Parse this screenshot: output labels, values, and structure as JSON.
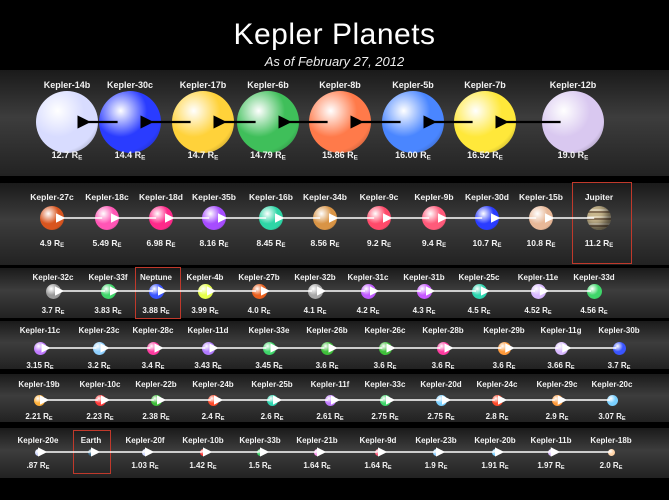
{
  "title": "Kepler Planets",
  "subtitle": "As of February 27, 2012",
  "unit": "E",
  "rows": [
    {
      "planets": [
        {
          "name": "Kepler-14b",
          "radius": "12.7",
          "color": "#d8dcff"
        },
        {
          "name": "Kepler-30c",
          "radius": "14.4",
          "color": "#2a3cff"
        },
        {
          "name": "Kepler-17b",
          "radius": "14.7",
          "color": "#ffd23a"
        },
        {
          "name": "Kepler-6b",
          "radius": "14.79",
          "color": "#3fbf5a"
        },
        {
          "name": "Kepler-8b",
          "radius": "15.86",
          "color": "#ff7a4a"
        },
        {
          "name": "Kepler-5b",
          "radius": "16.00",
          "color": "#4a86ff"
        },
        {
          "name": "Kepler-7b",
          "radius": "16.52",
          "color": "#ffe83a"
        },
        {
          "name": "Kepler-12b",
          "radius": "19.0",
          "color": "#d9c8f0"
        }
      ]
    },
    {
      "planets": [
        {
          "name": "Kepler-27c",
          "radius": "4.9",
          "color": "#d8551f"
        },
        {
          "name": "Kepler-18c",
          "radius": "5.49",
          "color": "#ff55b5"
        },
        {
          "name": "Kepler-18d",
          "radius": "6.98",
          "color": "#ff2a8a"
        },
        {
          "name": "Kepler-35b",
          "radius": "8.16",
          "color": "#a64cff"
        },
        {
          "name": "Kepler-16b",
          "radius": "8.45",
          "color": "#2ed6a6"
        },
        {
          "name": "Kepler-34b",
          "radius": "8.56",
          "color": "#d99445"
        },
        {
          "name": "Kepler-9c",
          "radius": "9.2",
          "color": "#ff4a6a"
        },
        {
          "name": "Kepler-9b",
          "radius": "9.4",
          "color": "#ff5a7a"
        },
        {
          "name": "Kepler-30d",
          "radius": "10.7",
          "color": "#2a3cff"
        },
        {
          "name": "Kepler-15b",
          "radius": "10.8",
          "color": "#e8b898"
        },
        {
          "name": "Jupiter",
          "radius": "11.2",
          "color": "#c9b88f",
          "highlight": true
        }
      ]
    },
    {
      "planets": [
        {
          "name": "Kepler-32c",
          "radius": "3.7",
          "color": "#9a9a9a"
        },
        {
          "name": "Kepler-33f",
          "radius": "3.83",
          "color": "#3fd66a"
        },
        {
          "name": "Neptune",
          "radius": "3.88",
          "color": "#3a55ff",
          "highlight": true
        },
        {
          "name": "Kepler-4b",
          "radius": "3.99",
          "color": "#e6ff4a"
        },
        {
          "name": "Kepler-27b",
          "radius": "4.0",
          "color": "#e8601f"
        },
        {
          "name": "Kepler-32b",
          "radius": "4.1",
          "color": "#a8a8a8"
        },
        {
          "name": "Kepler-31c",
          "radius": "4.2",
          "color": "#c05aff"
        },
        {
          "name": "Kepler-31b",
          "radius": "4.3",
          "color": "#c85aff"
        },
        {
          "name": "Kepler-25c",
          "radius": "4.5",
          "color": "#2ed6b0"
        },
        {
          "name": "Kepler-11e",
          "radius": "4.52",
          "color": "#d8b8ff"
        },
        {
          "name": "Kepler-33d",
          "radius": "4.56",
          "color": "#3fd66a"
        }
      ]
    },
    {
      "planets": [
        {
          "name": "Kepler-11c",
          "radius": "3.15",
          "color": "#c07aff"
        },
        {
          "name": "Kepler-23c",
          "radius": "3.2",
          "color": "#8fd0ff"
        },
        {
          "name": "Kepler-28c",
          "radius": "3.4",
          "color": "#ff3aa0"
        },
        {
          "name": "Kepler-11d",
          "radius": "3.43",
          "color": "#b07aff"
        },
        {
          "name": "Kepler-33e",
          "radius": "3.45",
          "color": "#3fd66a"
        },
        {
          "name": "Kepler-26b",
          "radius": "3.6",
          "color": "#3fbf3a"
        },
        {
          "name": "Kepler-26c",
          "radius": "3.6",
          "color": "#3fbf3a"
        },
        {
          "name": "Kepler-28b",
          "radius": "3.6",
          "color": "#ff3aa0"
        },
        {
          "name": "Kepler-29b",
          "radius": "3.6",
          "color": "#ff9a3a"
        },
        {
          "name": "Kepler-11g",
          "radius": "3.66",
          "color": "#d8b8ff"
        },
        {
          "name": "Kepler-30b",
          "radius": "3.7",
          "color": "#3a55ff"
        }
      ]
    },
    {
      "planets": [
        {
          "name": "Kepler-19b",
          "radius": "2.21",
          "color": "#ffb03a"
        },
        {
          "name": "Kepler-10c",
          "radius": "2.23",
          "color": "#ff3a3a"
        },
        {
          "name": "Kepler-22b",
          "radius": "2.38",
          "color": "#3fbf3a"
        },
        {
          "name": "Kepler-24b",
          "radius": "2.4",
          "color": "#ff4a2a"
        },
        {
          "name": "Kepler-25b",
          "radius": "2.6",
          "color": "#2ed6b0"
        },
        {
          "name": "Kepler-11f",
          "radius": "2.61",
          "color": "#c07aff"
        },
        {
          "name": "Kepler-33c",
          "radius": "2.75",
          "color": "#3fd66a"
        },
        {
          "name": "Kepler-20d",
          "radius": "2.75",
          "color": "#7ad0ff"
        },
        {
          "name": "Kepler-24c",
          "radius": "2.8",
          "color": "#ff4a2a"
        },
        {
          "name": "Kepler-29c",
          "radius": "2.9",
          "color": "#ff9a3a"
        },
        {
          "name": "Kepler-20c",
          "radius": "3.07",
          "color": "#7ad0ff"
        }
      ]
    },
    {
      "planets": [
        {
          "name": "Kepler-20e",
          "radius": ".87",
          "color": "#cfd8ff"
        },
        {
          "name": "Earth",
          "radius": "",
          "color": "#3a6a8a",
          "highlight": true
        },
        {
          "name": "Kepler-20f",
          "radius": "1.03",
          "color": "#cfd8ff"
        },
        {
          "name": "Kepler-10b",
          "radius": "1.42",
          "color": "#ff3a3a"
        },
        {
          "name": "Kepler-33b",
          "radius": "1.5",
          "color": "#3fd66a"
        },
        {
          "name": "Kepler-21b",
          "radius": "1.64",
          "color": "#ff9af0"
        },
        {
          "name": "Kepler-9d",
          "radius": "1.64",
          "color": "#ff5a7a"
        },
        {
          "name": "Kepler-23b",
          "radius": "1.9",
          "color": "#8fd0ff"
        },
        {
          "name": "Kepler-20b",
          "radius": "1.91",
          "color": "#7ad0ff"
        },
        {
          "name": "Kepler-11b",
          "radius": "1.97",
          "color": "#d8b8ff"
        },
        {
          "name": "Kepler-18b",
          "radius": "2.0",
          "color": "#ffd4a8"
        }
      ]
    }
  ]
}
